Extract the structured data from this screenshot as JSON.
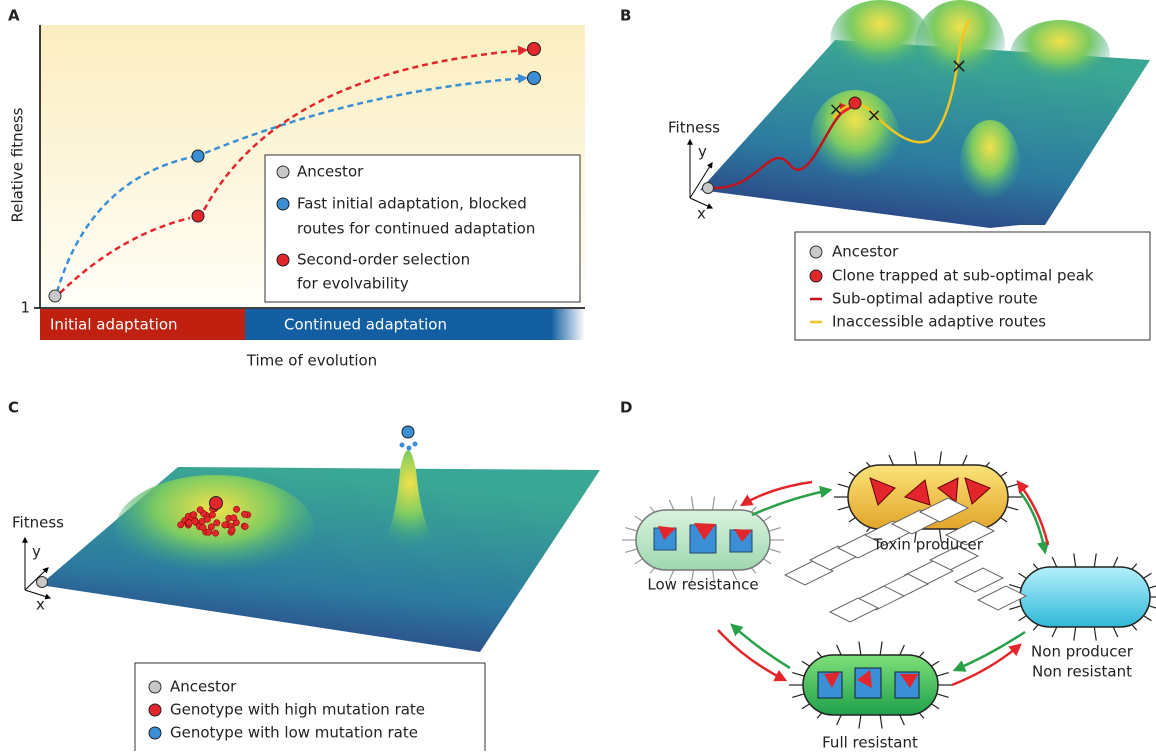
{
  "panel_a": {
    "label": "A",
    "y_axis_label": "Relative fitness",
    "y_tick": "1",
    "x_axis_label": "Time of evolution",
    "phases": [
      "Initial adaptation",
      "Continued adaptation"
    ],
    "legend": [
      {
        "lines": [
          "Ancestor"
        ]
      },
      {
        "lines": [
          "Fast initial adaptation, blocked",
          "routes for continued adaptation"
        ]
      },
      {
        "lines": [
          "Second-order selection",
          "for evolvability"
        ]
      }
    ]
  },
  "panel_b": {
    "label": "B",
    "axis_z": "Fitness",
    "axis_y": "y",
    "axis_x": "x",
    "legend": [
      "Ancestor",
      "Clone trapped at sub-optimal peak",
      "Sub-optimal adaptive route",
      "Inaccessible adaptive routes"
    ]
  },
  "panel_c": {
    "label": "C",
    "axis_z": "Fitness",
    "axis_y": "y",
    "axis_x": "x",
    "legend": [
      "Ancestor",
      "Genotype with high mutation rate",
      "Genotype with low mutation rate"
    ]
  },
  "panel_d": {
    "label": "D",
    "nodes": [
      {
        "lines": [
          "Toxin producer"
        ]
      },
      {
        "lines": [
          "Low resistance"
        ]
      },
      {
        "lines": [
          "Non producer",
          "Non resistant"
        ]
      },
      {
        "lines": [
          "Full resistant"
        ]
      }
    ]
  }
}
